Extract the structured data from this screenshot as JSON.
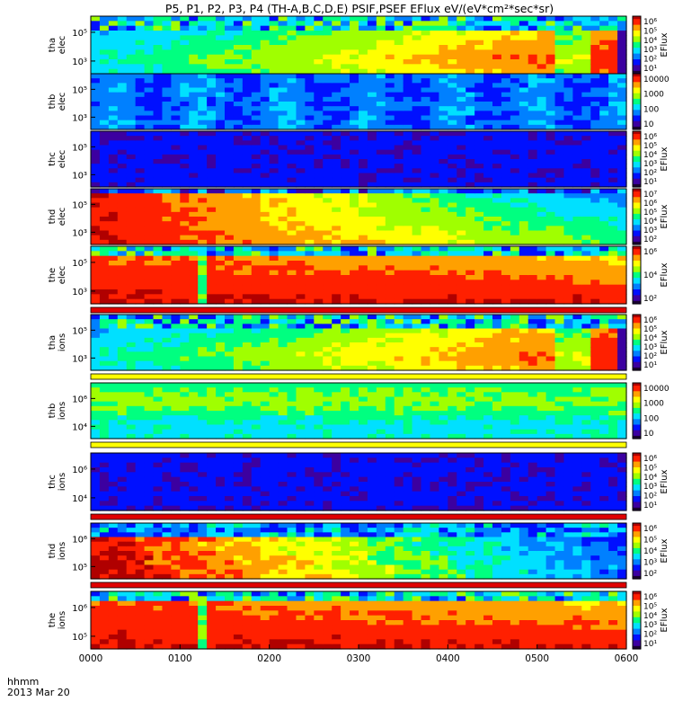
{
  "title": "P5, P1, P2, P3, P4  (TH-A,B,C,D,E) PSIF,PSEF EFlux eV/(eV*cm²*sec*sr)",
  "x_axis": {
    "label_line1": "hhmm",
    "label_line2": "2013 Mar 20",
    "ticks": [
      "0000",
      "0100",
      "0200",
      "0300",
      "0400",
      "0500",
      "0600"
    ]
  },
  "colorbar_label": "EFlux",
  "colors": {
    "frame": "#000000",
    "flag_red": "#e00000",
    "flag_yellow": "#ffff00",
    "spectrogram_scale": [
      "#1a0033",
      "#3c00a0",
      "#0010ff",
      "#0080ff",
      "#00e0ff",
      "#00ff80",
      "#a0ff00",
      "#ffff00",
      "#ffa000",
      "#ff2000",
      "#b00000"
    ]
  },
  "chart_data": {
    "type": "heatmap",
    "description_units": "time vs energy spectrogram, color = EFlux",
    "xlim": [
      "00:00",
      "06:00"
    ],
    "panels": [
      {
        "id": "tha-elec",
        "ylabel_probe": "tha",
        "ylabel_species": "elec",
        "yticks": [
          "10⁵",
          "10³"
        ],
        "cbar_ticks": [
          "10⁶",
          "10⁵",
          "10⁴",
          "10³",
          "10²",
          "10¹"
        ],
        "cbar_label": "EFlux",
        "intensity_profile": "rising",
        "flag_after": null
      },
      {
        "id": "thb-elec",
        "ylabel_probe": "thb",
        "ylabel_species": "elec",
        "yticks": [
          "10⁵",
          "10³"
        ],
        "cbar_ticks": [
          "10000",
          "1000",
          "100",
          "10"
        ],
        "cbar_label": "",
        "intensity_profile": "low-flat",
        "flag_after": null
      },
      {
        "id": "thc-elec",
        "ylabel_probe": "thc",
        "ylabel_species": "elec",
        "yticks": [
          "10⁵",
          "10³"
        ],
        "cbar_ticks": [
          "10⁶",
          "10⁵",
          "10⁴",
          "10³",
          "10²",
          "10¹"
        ],
        "cbar_label": "EFlux",
        "intensity_profile": "very-low",
        "flag_after": null
      },
      {
        "id": "thd-elec",
        "ylabel_probe": "thd",
        "ylabel_species": "elec",
        "yticks": [
          "10⁵",
          "10³"
        ],
        "cbar_ticks": [
          "10⁷",
          "10⁶",
          "10⁵",
          "10⁴",
          "10³",
          "10²"
        ],
        "cbar_label": "EFlux",
        "intensity_profile": "falling",
        "flag_after": null
      },
      {
        "id": "the-elec",
        "ylabel_probe": "the",
        "ylabel_species": "elec",
        "yticks": [
          "10⁵",
          "10³"
        ],
        "cbar_ticks": [
          "10⁶",
          "10⁴",
          "10²"
        ],
        "cbar_label": "EFlux",
        "intensity_profile": "high-banded",
        "flag_after": "red"
      },
      {
        "id": "tha-ions",
        "ylabel_probe": "tha",
        "ylabel_species": "ions",
        "yticks": [
          "10⁵",
          "10³"
        ],
        "cbar_ticks": [
          "10⁶",
          "10⁵",
          "10⁴",
          "10³",
          "10²",
          "10¹"
        ],
        "cbar_label": "EFlux",
        "intensity_profile": "rising",
        "flag_after": "yellow"
      },
      {
        "id": "thb-ions",
        "ylabel_probe": "thb",
        "ylabel_species": "ions",
        "yticks": [
          "10⁶",
          "10⁴"
        ],
        "cbar_ticks": [
          "10000",
          "1000",
          "100",
          "10"
        ],
        "cbar_label": "",
        "intensity_profile": "mid-flat",
        "flag_after": "yellow"
      },
      {
        "id": "thc-ions",
        "ylabel_probe": "thc",
        "ylabel_species": "ions",
        "yticks": [
          "10⁶",
          "10⁴"
        ],
        "cbar_ticks": [
          "10⁶",
          "10⁵",
          "10⁴",
          "10³",
          "10²",
          "10¹"
        ],
        "cbar_label": "EFlux",
        "intensity_profile": "very-low",
        "flag_after": "red"
      },
      {
        "id": "thd-ions",
        "ylabel_probe": "thd",
        "ylabel_species": "ions",
        "yticks": [
          "10⁶",
          "10⁵"
        ],
        "cbar_ticks": [
          "10⁶",
          "10⁵",
          "10⁴",
          "10³",
          "10²"
        ],
        "cbar_label": "EFlux",
        "intensity_profile": "falling-ions",
        "flag_after": "red"
      },
      {
        "id": "the-ions",
        "ylabel_probe": "the",
        "ylabel_species": "ions",
        "yticks": [
          "10⁶",
          "10⁵"
        ],
        "cbar_ticks": [
          "10⁶",
          "10⁵",
          "10⁴",
          "10³",
          "10²",
          "10¹"
        ],
        "cbar_label": "EFlux",
        "intensity_profile": "high-banded",
        "flag_after": null
      }
    ]
  }
}
